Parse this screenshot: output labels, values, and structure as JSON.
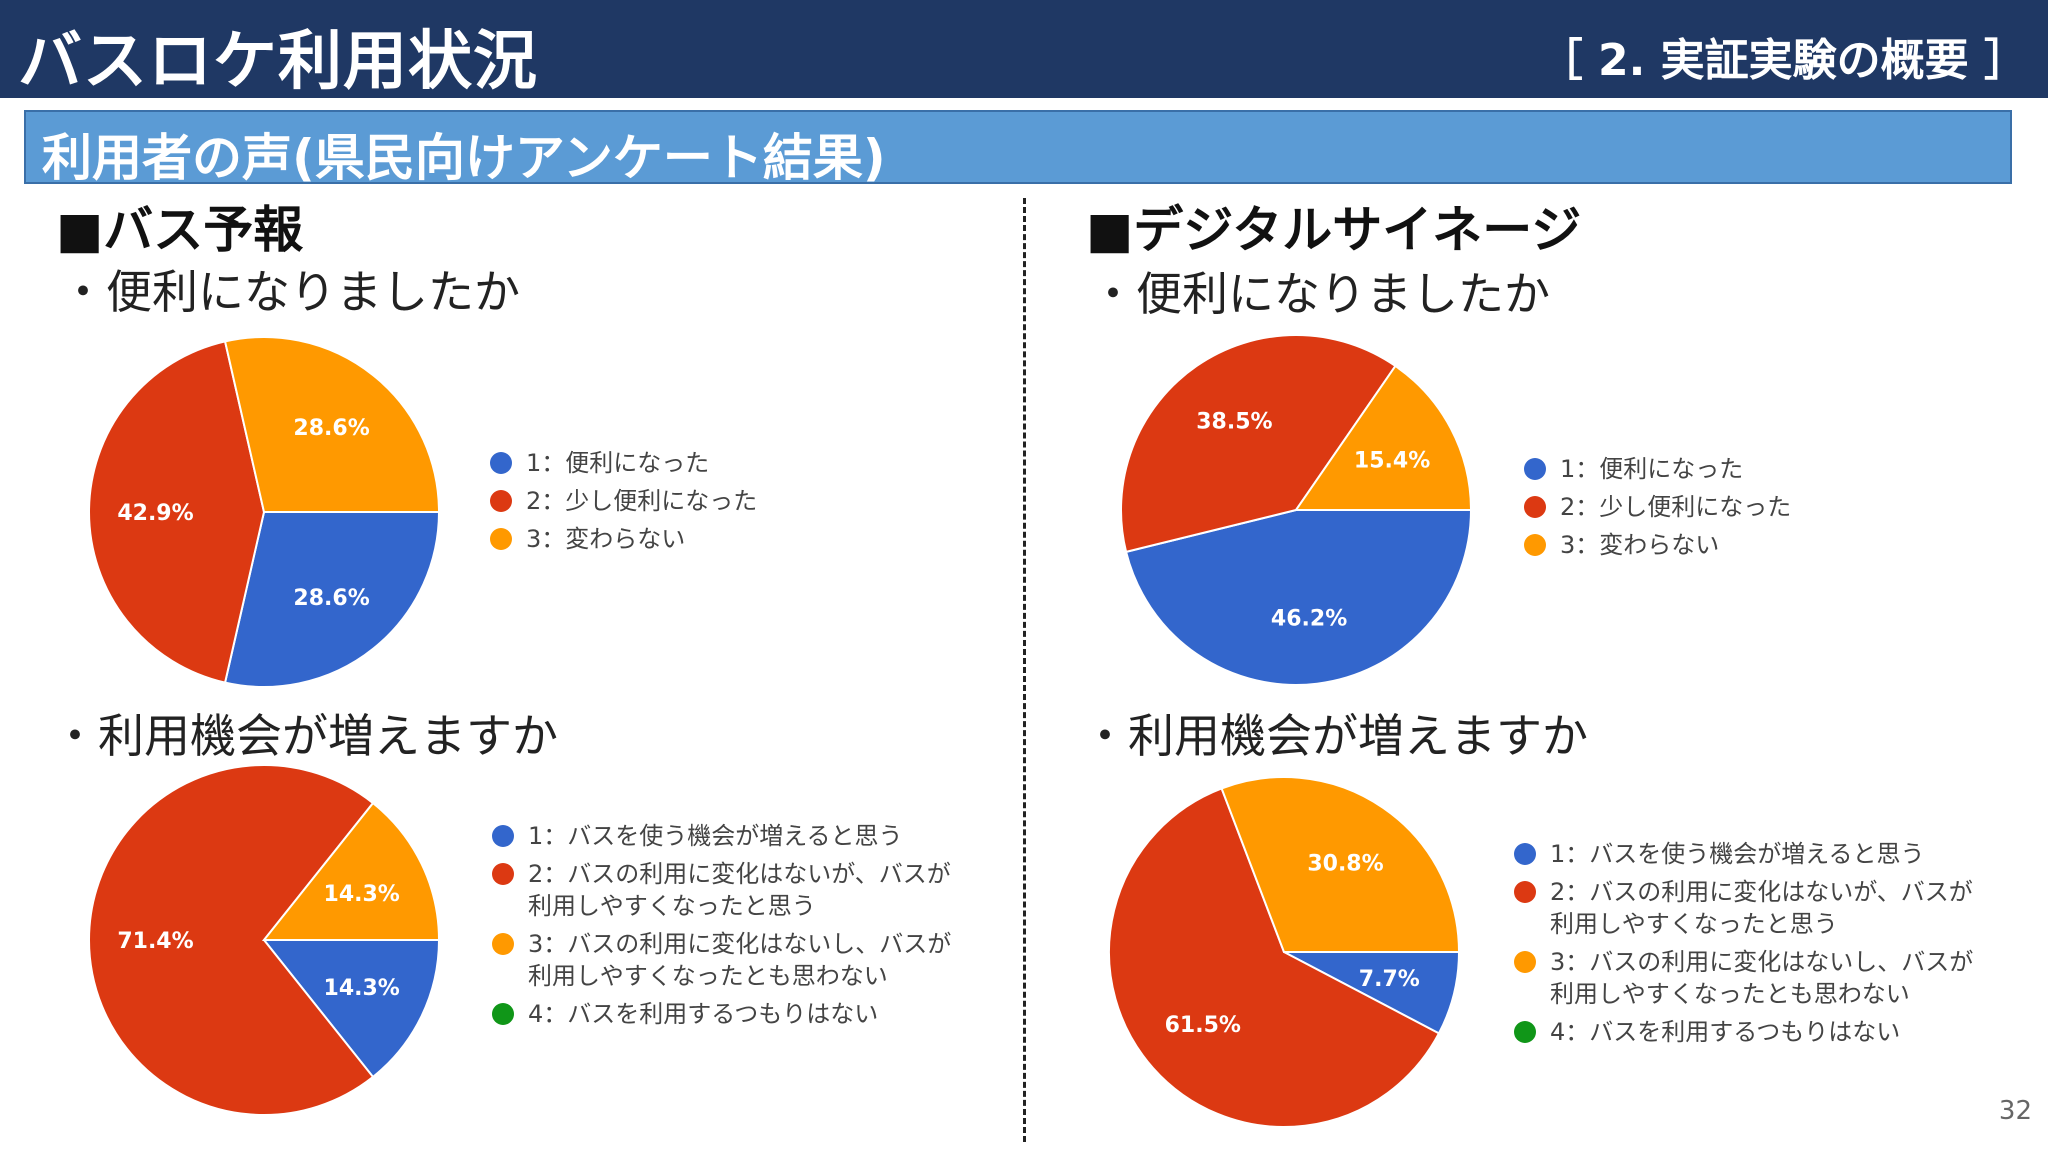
{
  "header": {
    "title": "バスロケ利用状況",
    "section": "［ 2. 実証実験の概要 ］"
  },
  "subtitle": "利用者の声(県民向けアンケート結果)",
  "colors": {
    "blue": "#3366cc",
    "red": "#dc3912",
    "orange": "#ff9900",
    "green": "#109618",
    "header_bg": "#1f3864",
    "subbar_bg": "#5b9bd5"
  },
  "panels": {
    "left": {
      "title": "■バス予報",
      "q1": "・便利になりましたか",
      "q2": "・利用機会が増えますか"
    },
    "right": {
      "title": "■デジタルサイネージ",
      "q1": "・便利になりましたか",
      "q2": "・利用機会が増えますか"
    }
  },
  "legends": {
    "convenience": [
      {
        "label": "1：便利になった",
        "color": "#3366cc"
      },
      {
        "label": "2：少し便利になった",
        "color": "#dc3912"
      },
      {
        "label": "3：変わらない",
        "color": "#ff9900"
      }
    ],
    "usage": [
      {
        "label": "1：バスを使う機会が増えると思う",
        "color": "#3366cc"
      },
      {
        "label": "2：バスの利用に変化はないが、バスが",
        "label2": "利用しやすくなったと思う",
        "color": "#dc3912"
      },
      {
        "label": "3：バスの利用に変化はないし、バスが",
        "label2": "利用しやすくなったとも思わない",
        "color": "#ff9900"
      },
      {
        "label": "4：バスを利用するつもりはない",
        "color": "#109618"
      }
    ]
  },
  "chart_data": [
    {
      "type": "pie",
      "panel": "バス予報",
      "question": "便利になりましたか",
      "categories": [
        "1：便利になった",
        "2：少し便利になった",
        "3：変わらない"
      ],
      "values": [
        28.6,
        42.9,
        28.6
      ],
      "labels": [
        "28.6%",
        "42.9%",
        "28.6%"
      ],
      "colors": [
        "#3366cc",
        "#dc3912",
        "#ff9900"
      ],
      "legend": "right"
    },
    {
      "type": "pie",
      "panel": "バス予報",
      "question": "利用機会が増えますか",
      "categories": [
        "1：バスを使う機会が増えると思う",
        "2：バスの利用に変化はないが、バスが利用しやすくなったと思う",
        "3：バスの利用に変化はないし、バスが利用しやすくなったとも思わない",
        "4：バスを利用するつもりはない"
      ],
      "values": [
        14.3,
        71.4,
        14.3,
        0
      ],
      "labels": [
        "14.3%",
        "71.4%",
        "14.3%",
        ""
      ],
      "colors": [
        "#3366cc",
        "#dc3912",
        "#ff9900",
        "#109618"
      ],
      "legend": "right"
    },
    {
      "type": "pie",
      "panel": "デジタルサイネージ",
      "question": "便利になりましたか",
      "categories": [
        "1：便利になった",
        "2：少し便利になった",
        "3：変わらない"
      ],
      "values": [
        46.2,
        38.5,
        15.4
      ],
      "labels": [
        "46.2%",
        "38.5%",
        "15.4%"
      ],
      "colors": [
        "#3366cc",
        "#dc3912",
        "#ff9900"
      ],
      "legend": "right"
    },
    {
      "type": "pie",
      "panel": "デジタルサイネージ",
      "question": "利用機会が増えますか",
      "categories": [
        "1：バスを使う機会が増えると思う",
        "2：バスの利用に変化はないが、バスが利用しやすくなったと思う",
        "3：バスの利用に変化はないし、バスが利用しやすくなったとも思わない",
        "4：バスを利用するつもりはない"
      ],
      "values": [
        7.7,
        61.5,
        30.8,
        0
      ],
      "labels": [
        "7.7%",
        "61.5%",
        "30.8%",
        ""
      ],
      "colors": [
        "#3366cc",
        "#dc3912",
        "#ff9900",
        "#109618"
      ],
      "legend": "right"
    }
  ],
  "page_number": "32"
}
